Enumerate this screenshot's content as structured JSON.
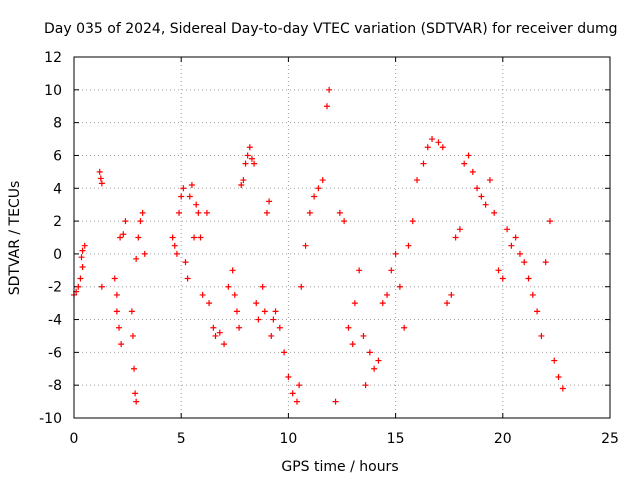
{
  "chart_data": {
    "type": "scatter",
    "title": "Day 035 of 2024, Sidereal Day-to-day VTEC variation (SDTVAR) for receiver dumg",
    "xlabel": "GPS time / hours",
    "ylabel": "SDTVAR / TECUs",
    "xlim": [
      0,
      25
    ],
    "ylim": [
      -10,
      12
    ],
    "xticks": [
      "0",
      "5",
      "10",
      "15",
      "20",
      "25"
    ],
    "yticks": [
      "-10",
      "-8",
      "-6",
      "-4",
      "-2",
      "0",
      "2",
      "4",
      "6",
      "8",
      "10",
      "12"
    ],
    "grid": true,
    "marker": "+",
    "color": "#ff0000",
    "series": [
      {
        "name": "SDTVAR",
        "x": [
          0.0,
          0.1,
          0.2,
          0.3,
          0.4,
          0.5,
          0.35,
          0.4,
          1.2,
          1.25,
          1.3,
          1.3,
          1.9,
          2.0,
          2.0,
          2.1,
          2.2,
          2.15,
          2.3,
          2.4,
          2.7,
          2.75,
          2.8,
          2.85,
          2.9,
          2.9,
          3.0,
          3.1,
          3.2,
          3.3,
          4.6,
          4.7,
          4.8,
          4.9,
          5.0,
          5.1,
          5.2,
          5.3,
          5.4,
          5.5,
          5.6,
          5.7,
          5.8,
          5.9,
          6.0,
          6.2,
          6.3,
          6.5,
          6.6,
          6.8,
          7.0,
          7.2,
          7.4,
          7.5,
          7.6,
          7.7,
          7.8,
          7.9,
          8.0,
          8.1,
          8.2,
          8.3,
          8.4,
          8.5,
          8.6,
          8.8,
          8.9,
          9.0,
          9.1,
          9.2,
          9.3,
          9.4,
          9.6,
          9.8,
          10.0,
          10.2,
          10.4,
          10.5,
          10.6,
          10.8,
          11.0,
          11.2,
          11.4,
          11.6,
          11.8,
          11.9,
          12.2,
          12.4,
          12.6,
          12.8,
          13.0,
          13.1,
          13.3,
          13.5,
          13.6,
          13.8,
          14.0,
          14.2,
          14.4,
          14.6,
          14.8,
          15.0,
          15.2,
          15.4,
          15.6,
          15.8,
          16.0,
          16.3,
          16.5,
          16.7,
          17.0,
          17.2,
          17.4,
          17.6,
          17.8,
          18.0,
          18.2,
          18.4,
          18.6,
          18.8,
          19.0,
          19.2,
          19.4,
          19.6,
          19.8,
          20.0,
          20.2,
          20.4,
          20.6,
          20.8,
          21.0,
          21.2,
          21.4,
          21.6,
          21.8,
          22.0,
          22.2,
          22.4,
          22.6,
          22.8
        ],
        "y": [
          -2.5,
          -2.3,
          -2.0,
          -1.5,
          -0.8,
          0.5,
          -0.2,
          0.2,
          5.0,
          4.6,
          4.3,
          -2.0,
          -1.5,
          -2.5,
          -3.5,
          -4.5,
          -5.5,
          1.0,
          1.2,
          2.0,
          -3.5,
          -5.0,
          -7.0,
          -8.5,
          -9.0,
          -0.3,
          1.0,
          2.0,
          2.5,
          0.0,
          1.0,
          0.5,
          0.0,
          2.5,
          3.5,
          4.0,
          -0.5,
          -1.5,
          3.5,
          4.2,
          1.0,
          3.0,
          2.5,
          1.0,
          -2.5,
          2.5,
          -3.0,
          -4.5,
          -5.0,
          -4.8,
          -5.5,
          -2.0,
          -1.0,
          -2.5,
          -3.5,
          -4.5,
          4.2,
          4.5,
          5.5,
          6.0,
          6.5,
          5.8,
          5.5,
          -3.0,
          -4.0,
          -2.0,
          -3.5,
          2.5,
          3.2,
          -5.0,
          -4.0,
          -3.5,
          -4.5,
          -6.0,
          -7.5,
          -8.5,
          -9.0,
          -8.0,
          -2.0,
          0.5,
          2.5,
          3.5,
          4.0,
          4.5,
          9.0,
          10.0,
          -9.0,
          2.5,
          2.0,
          -4.5,
          -5.5,
          -3.0,
          -1.0,
          -5.0,
          -8.0,
          -6.0,
          -7.0,
          -6.5,
          -3.0,
          -2.5,
          -1.0,
          0.0,
          -2.0,
          -4.5,
          0.5,
          2.0,
          4.5,
          5.5,
          6.5,
          7.0,
          6.8,
          6.5,
          -3.0,
          -2.5,
          1.0,
          1.5,
          5.5,
          6.0,
          5.0,
          4.0,
          3.5,
          3.0,
          4.5,
          2.5,
          -1.0,
          -1.5,
          1.5,
          0.5,
          1.0,
          0.0,
          -0.5,
          -1.5,
          -2.5,
          -3.5,
          -5.0,
          -0.5,
          2.0,
          -6.5,
          -7.5,
          -8.2
        ]
      }
    ]
  }
}
